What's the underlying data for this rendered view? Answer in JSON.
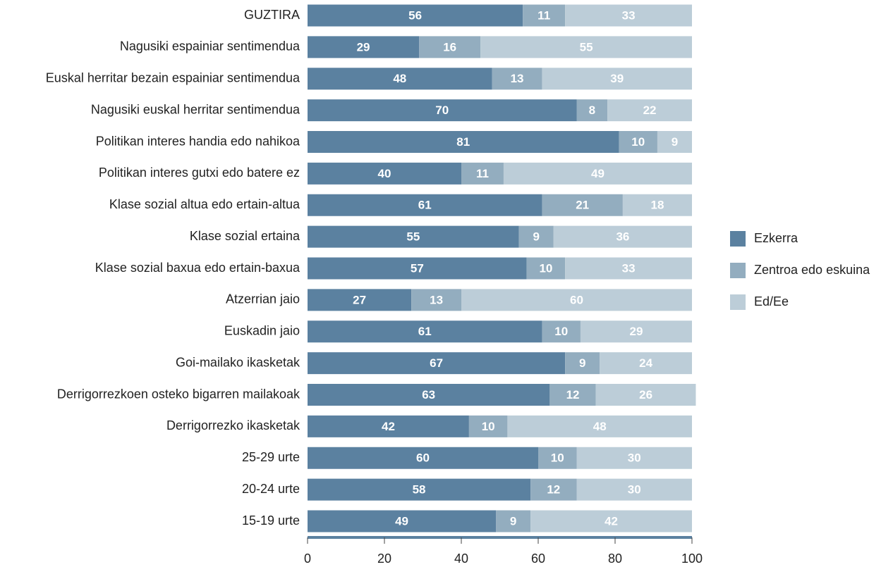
{
  "chart_data": {
    "type": "stacked-bar-horizontal",
    "categories": [
      "GUZTIRA",
      "Nagusiki espainiar sentimendua",
      "Euskal herritar bezain espainiar sentimendua",
      "Nagusiki euskal herritar sentimendua",
      "Politikan interes handia edo nahikoa",
      "Politikan interes gutxi edo batere ez",
      "Klase sozial altua edo ertain-altua",
      "Klase sozial ertaina",
      "Klase sozial baxua edo ertain-baxua",
      "Atzerrian jaio",
      "Euskadin jaio",
      "Goi-mailako ikasketak",
      "Derrigorrezkoen osteko bigarren mailakoak",
      "Derrigorrezko ikasketak",
      "25-29 urte",
      "20-24 urte",
      "15-19 urte"
    ],
    "series": [
      {
        "name": "Ezkerra",
        "color": "#5b81a0",
        "values": [
          56,
          29,
          48,
          70,
          81,
          40,
          61,
          55,
          57,
          27,
          61,
          67,
          63,
          42,
          60,
          58,
          49
        ]
      },
      {
        "name": "Zentroa edo eskuina",
        "color": "#93adbf",
        "values": [
          11,
          16,
          13,
          8,
          10,
          11,
          21,
          9,
          10,
          13,
          10,
          9,
          12,
          10,
          10,
          12,
          9
        ]
      },
      {
        "name": "Ed/Ee",
        "color": "#bccdd8",
        "values": [
          33,
          55,
          39,
          22,
          9,
          49,
          18,
          36,
          33,
          60,
          29,
          24,
          26,
          48,
          30,
          30,
          42
        ]
      }
    ],
    "xlim": [
      0,
      100
    ],
    "xticks": [
      0,
      20,
      40,
      60,
      80,
      100
    ],
    "legend": "right"
  }
}
